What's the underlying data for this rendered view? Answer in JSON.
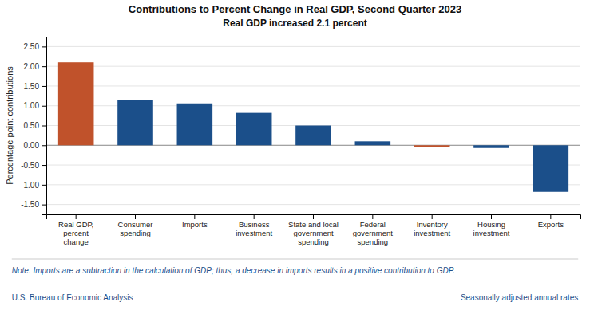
{
  "chart_data": {
    "type": "bar",
    "title": "Contributions to Percent Change in Real GDP, Second Quarter 2023",
    "subtitle": "Real GDP increased 2.1 percent",
    "categories": [
      "Real GDP,\npercent\nchange",
      "Consumer\nspending",
      "Imports",
      "Business\ninvestment",
      "State and local\ngovernment\nspending",
      "Federal\ngovernment\nspending",
      "Inventory\ninvestment",
      "Housing\ninvestment",
      "Exports"
    ],
    "values": [
      2.1,
      1.15,
      1.06,
      0.82,
      0.5,
      0.1,
      -0.04,
      -0.07,
      -1.18
    ],
    "colors": [
      "#C0522B",
      "#1B4F8A",
      "#1B4F8A",
      "#1B4F8A",
      "#1B4F8A",
      "#1B4F8A",
      "#C0522B",
      "#1B4F8A",
      "#1B4F8A"
    ],
    "ylabel": "Percentage point contributions",
    "ylim": [
      -1.75,
      2.75
    ],
    "yticks": [
      {
        "value": -1.5,
        "label": "-1.50"
      },
      {
        "value": -1.0,
        "label": "-1.00"
      },
      {
        "value": -0.5,
        "label": "-0.50"
      },
      {
        "value": 0.0,
        "label": "0.00"
      },
      {
        "value": 0.5,
        "label": "0.50"
      },
      {
        "value": 1.0,
        "label": "1.00"
      },
      {
        "value": 1.5,
        "label": "1.50"
      },
      {
        "value": 2.0,
        "label": "2.00"
      },
      {
        "value": 2.5,
        "label": "2.50"
      }
    ],
    "grid": true,
    "annotations": [
      "Note. Imports are a subtraction in the calculation of GDP; thus, a decrease in imports results in a positive contribution to GDP.",
      "U.S. Bureau of Economic Analysis",
      "Seasonally adjusted annual rates"
    ]
  }
}
